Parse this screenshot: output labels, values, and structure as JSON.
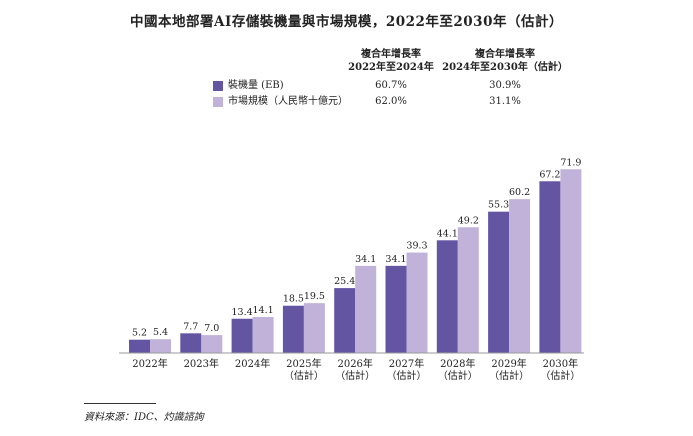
{
  "colors": {
    "installed": "#6455a3",
    "market": "#c0b2d8",
    "axis": "#999999"
  },
  "cagr": {
    "header1": [
      "複合年增長率",
      "2022年至2024年"
    ],
    "header2": [
      "複合年增長率",
      "2024年至2030年（估計）"
    ],
    "rows": [
      {
        "label": "裝機量 (EB)",
        "v1": "60.7%",
        "v2": "30.9%"
      },
      {
        "label": "市場規模（人民幣十億元）",
        "v1": "62.0%",
        "v2": "31.1%"
      }
    ]
  },
  "source": "資料來源：IDC、灼識諮詢",
  "chart_data": {
    "type": "bar",
    "title": "中國本地部署AI存儲裝機量與市場規模，2022年至2030年（估計）",
    "categories": [
      [
        "2022年"
      ],
      [
        "2023年"
      ],
      [
        "2024年"
      ],
      [
        "2025年",
        "（估計）"
      ],
      [
        "2026年",
        "（估計）"
      ],
      [
        "2027年",
        "（估計）"
      ],
      [
        "2028年",
        "（估計）"
      ],
      [
        "2029年",
        "（估計）"
      ],
      [
        "2030年",
        "（估計）"
      ]
    ],
    "series": [
      {
        "name": "裝機量 (EB)",
        "values": [
          5.2,
          7.7,
          13.4,
          18.5,
          25.4,
          34.1,
          44.1,
          55.3,
          67.2
        ]
      },
      {
        "name": "市場規模（人民幣十億元）",
        "values": [
          5.4,
          7.0,
          14.1,
          19.5,
          34.1,
          39.3,
          49.2,
          60.2,
          71.9
        ]
      }
    ],
    "ylim": [
      0,
      72
    ],
    "grid": false,
    "legend": "top"
  }
}
